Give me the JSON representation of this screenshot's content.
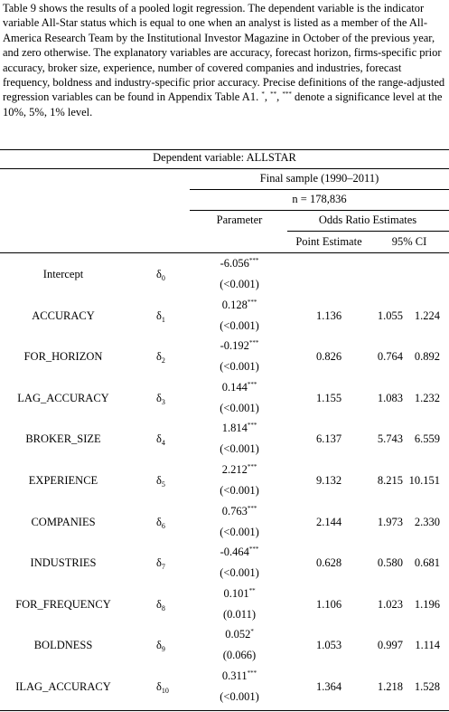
{
  "caption": {
    "text": "Table 9 shows the results of a pooled logit regression. The dependent variable is the indicator variable All-Star status which is equal to one when an analyst is listed as a member of the All-America Research Team by the Institutional Investor Magazine in October of the previous year, and zero otherwise. The explanatory variables are accuracy, forecast horizon, firms-specific prior accuracy, broker size, experience, number of covered companies and industries, forecast frequency, boldness and industry-specific prior accuracy. Precise definitions of the range-adjusted regression variables can be found in Appendix Table A1.",
    "significance_note": "denote a significance level at the 10%, 5%, 1% level."
  },
  "table": {
    "dependent_variable": "Dependent variable: ALLSTAR",
    "sample": "Final sample (1990–2011)",
    "n": "n = 178,836",
    "col_parameter": "Parameter",
    "col_odds": "Odds Ratio Estimates",
    "col_point": "Point Estimate",
    "col_ci": "95% CI",
    "rows": [
      {
        "name": "Intercept",
        "delta": "δ",
        "sub": "0",
        "coef": "-6.056",
        "stars": "***",
        "p": "(<0.001)",
        "point": "",
        "ci_low": "",
        "ci_high": ""
      },
      {
        "name": "ACCURACY",
        "delta": "δ",
        "sub": "1",
        "coef": "0.128",
        "stars": "***",
        "p": "(<0.001)",
        "point": "1.136",
        "ci_low": "1.055",
        "ci_high": "1.224"
      },
      {
        "name": "FOR_HORIZON",
        "delta": "δ",
        "sub": "2",
        "coef": "-0.192",
        "stars": "***",
        "p": "(<0.001)",
        "point": "0.826",
        "ci_low": "0.764",
        "ci_high": "0.892"
      },
      {
        "name": "LAG_ACCURACY",
        "delta": "δ",
        "sub": "3",
        "coef": "0.144",
        "stars": "***",
        "p": "(<0.001)",
        "point": "1.155",
        "ci_low": "1.083",
        "ci_high": "1.232"
      },
      {
        "name": "BROKER_SIZE",
        "delta": "δ",
        "sub": "4",
        "coef": "1.814",
        "stars": "***",
        "p": "(<0.001)",
        "point": "6.137",
        "ci_low": "5.743",
        "ci_high": "6.559"
      },
      {
        "name": "EXPERIENCE",
        "delta": "δ",
        "sub": "5",
        "coef": "2.212",
        "stars": "***",
        "p": "(<0.001)",
        "point": "9.132",
        "ci_low": "8.215",
        "ci_high": "10.151"
      },
      {
        "name": "COMPANIES",
        "delta": "δ",
        "sub": "6",
        "coef": "0.763",
        "stars": "***",
        "p": "(<0.001)",
        "point": "2.144",
        "ci_low": "1.973",
        "ci_high": "2.330"
      },
      {
        "name": "INDUSTRIES",
        "delta": "δ",
        "sub": "7",
        "coef": "-0.464",
        "stars": "***",
        "p": "(<0.001)",
        "point": "0.628",
        "ci_low": "0.580",
        "ci_high": "0.681"
      },
      {
        "name": "FOR_FREQUENCY",
        "delta": "δ",
        "sub": "8",
        "coef": "0.101",
        "stars": "**",
        "p": "(0.011)",
        "point": "1.106",
        "ci_low": "1.023",
        "ci_high": "1.196"
      },
      {
        "name": "BOLDNESS",
        "delta": "δ",
        "sub": "9",
        "coef": "0.052",
        "stars": "*",
        "p": "(0.066)",
        "point": "1.053",
        "ci_low": "0.997",
        "ci_high": "1.114"
      },
      {
        "name": "ILAG_ACCURACY",
        "delta": "δ",
        "sub": "10",
        "coef": "0.311",
        "stars": "***",
        "p": "(<0.001)",
        "point": "1.364",
        "ci_low": "1.218",
        "ci_high": "1.528"
      }
    ]
  }
}
